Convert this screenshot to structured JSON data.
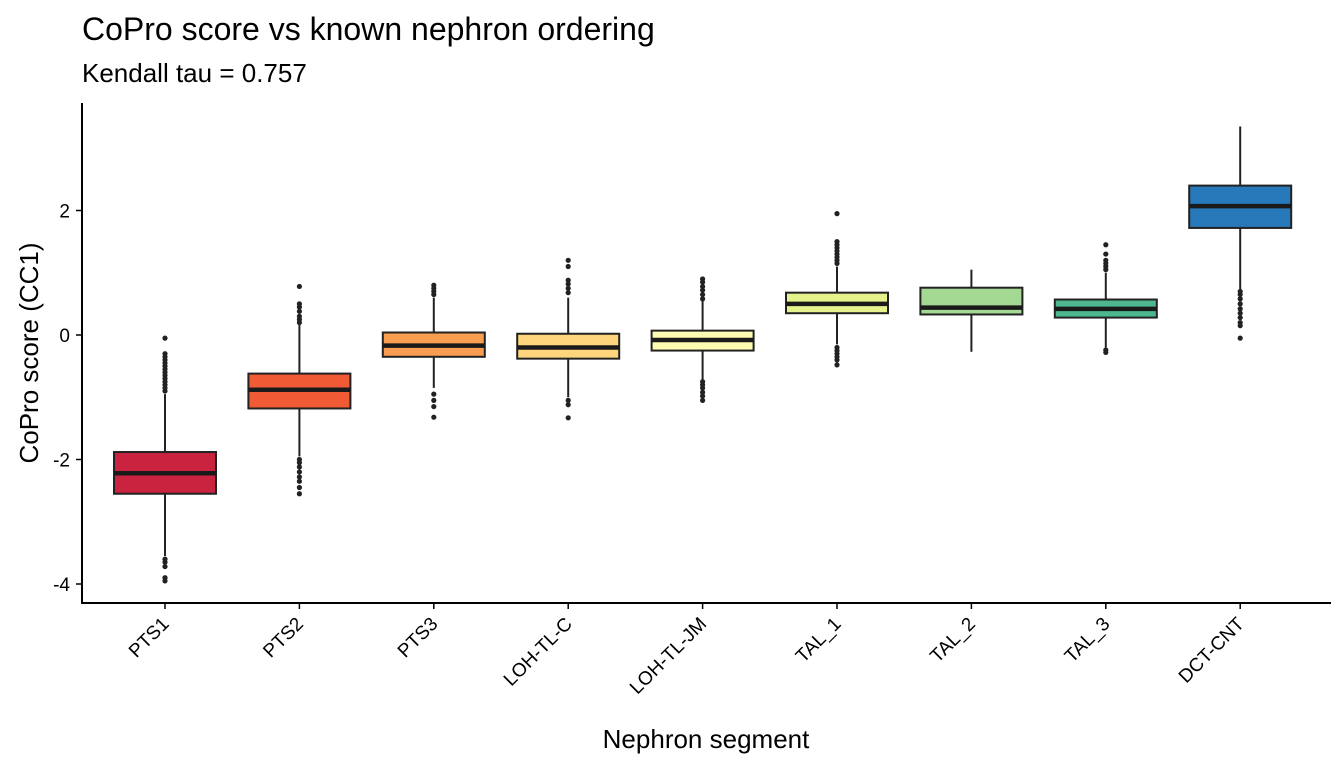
{
  "chart_data": {
    "type": "box",
    "title": "CoPro score vs known nephron ordering",
    "subtitle": "Kendall tau = 0.757",
    "xlabel": "Nephron segment",
    "ylabel": "CoPro score (CC1)",
    "ylim": [
      -4.3,
      3.8
    ],
    "y_ticks": [
      -4,
      -2,
      0,
      2
    ],
    "y_tick_labels": [
      "-4",
      "-2",
      "0",
      "2"
    ],
    "grid": false,
    "legend": "none",
    "categories": [
      "PTS1",
      "PTS2",
      "PTS3",
      "LOH-TL-C",
      "LOH-TL-JM",
      "TAL_1",
      "TAL_2",
      "TAL_3",
      "DCT-CNT"
    ],
    "boxes": [
      {
        "category": "PTS1",
        "whisker_low": -3.55,
        "q1": -2.55,
        "median": -2.22,
        "q3": -1.88,
        "whisker_high": -0.95,
        "color": "#c9233f",
        "outliers": [
          -3.95,
          -3.9,
          -3.72,
          -3.65,
          -3.6,
          -0.05,
          -0.3,
          -0.35,
          -0.4,
          -0.45,
          -0.5,
          -0.55,
          -0.6,
          -0.65,
          -0.7,
          -0.75,
          -0.8,
          -0.85,
          -0.9
        ]
      },
      {
        "category": "PTS2",
        "whisker_low": -1.95,
        "q1": -1.18,
        "median": -0.88,
        "q3": -0.62,
        "whisker_high": 0.18,
        "color": "#f05a35",
        "outliers": [
          -2.55,
          -2.45,
          -2.35,
          -2.28,
          -2.2,
          -2.12,
          -2.05,
          -2.0,
          0.2,
          0.25,
          0.3,
          0.38,
          0.45,
          0.5,
          0.78
        ]
      },
      {
        "category": "PTS3",
        "whisker_low": -0.85,
        "q1": -0.35,
        "median": -0.17,
        "q3": 0.04,
        "whisker_high": 0.6,
        "color": "#f99d51",
        "outliers": [
          -1.32,
          -1.15,
          -1.05,
          -0.95,
          0.65,
          0.7,
          0.75,
          0.8
        ]
      },
      {
        "category": "LOH-TL-C",
        "whisker_low": -1.0,
        "q1": -0.38,
        "median": -0.2,
        "q3": 0.02,
        "whisker_high": 0.6,
        "color": "#fdd57d",
        "outliers": [
          -1.33,
          -1.12,
          -1.05,
          0.68,
          0.75,
          0.82,
          0.88,
          1.1,
          1.2
        ]
      },
      {
        "category": "LOH-TL-JM",
        "whisker_low": -0.72,
        "q1": -0.25,
        "median": -0.08,
        "q3": 0.07,
        "whisker_high": 0.55,
        "color": "#fefbb3",
        "outliers": [
          -1.05,
          -0.98,
          -0.92,
          -0.85,
          -0.8,
          -0.75,
          0.58,
          0.65,
          0.72,
          0.78,
          0.85,
          0.9
        ]
      },
      {
        "category": "TAL_1",
        "whisker_low": -0.15,
        "q1": 0.35,
        "median": 0.5,
        "q3": 0.68,
        "whisker_high": 1.1,
        "color": "#e6f38d",
        "outliers": [
          -0.48,
          -0.4,
          -0.35,
          -0.3,
          -0.25,
          -0.2,
          1.15,
          1.2,
          1.25,
          1.3,
          1.35,
          1.4,
          1.45,
          1.5,
          1.95
        ]
      },
      {
        "category": "TAL_2",
        "whisker_low": -0.27,
        "q1": 0.33,
        "median": 0.44,
        "q3": 0.76,
        "whisker_high": 1.05,
        "color": "#a3d992",
        "outliers": []
      },
      {
        "category": "TAL_3",
        "whisker_low": -0.2,
        "q1": 0.28,
        "median": 0.42,
        "q3": 0.57,
        "whisker_high": 1.0,
        "color": "#4db88f",
        "outliers": [
          -0.28,
          -0.24,
          1.05,
          1.1,
          1.15,
          1.2,
          1.3,
          1.45
        ]
      },
      {
        "category": "DCT-CNT",
        "whisker_low": 0.72,
        "q1": 1.72,
        "median": 2.07,
        "q3": 2.4,
        "whisker_high": 3.35,
        "color": "#2879b9",
        "outliers": [
          -0.05,
          0.15,
          0.2,
          0.28,
          0.35,
          0.42,
          0.5,
          0.58,
          0.65,
          0.7
        ]
      }
    ]
  }
}
